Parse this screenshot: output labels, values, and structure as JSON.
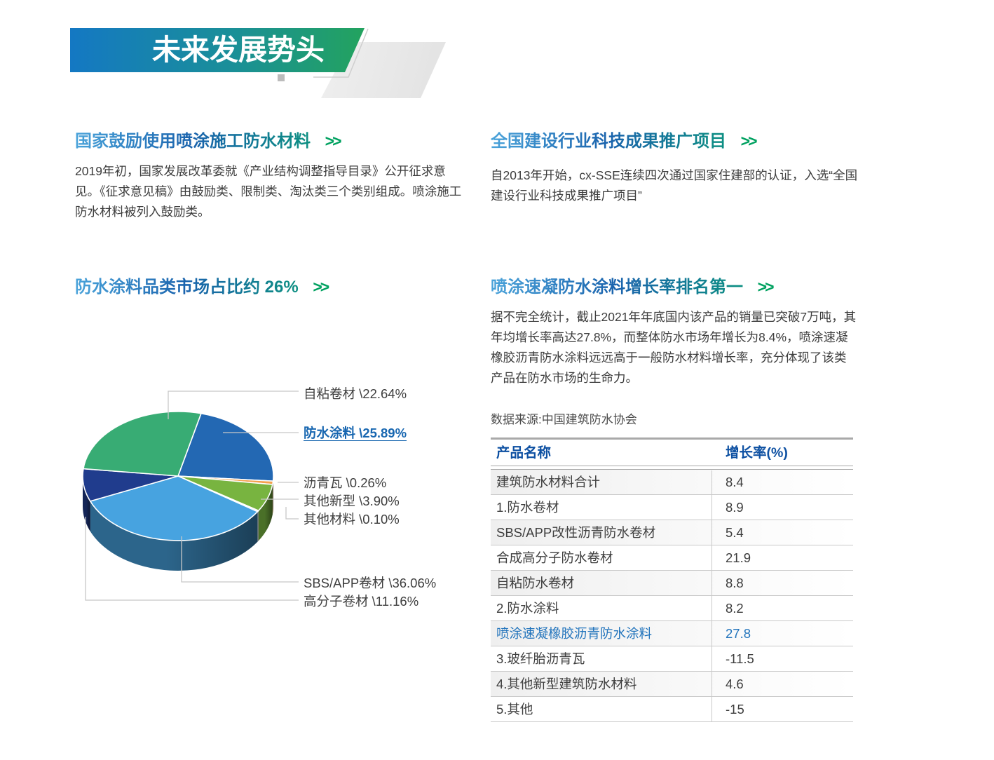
{
  "banner": {
    "title": "未来发展势头"
  },
  "sections": {
    "s1": {
      "heading": "国家鼓励使用喷涂施工防水材料",
      "arrow": ">>",
      "body": "2019年初，国家发展改革委就《产业结构调整指导目录》公开征求意\n见。《征求意见稿》由鼓励类、限制类、淘汰类三个类别组成。喷涂施工\n防水材料被列入鼓励类。"
    },
    "s2": {
      "heading": "全国建设行业科技成果推广项目",
      "arrow": ">>",
      "body": "自2013年开始，cx-SSE连续四次通过国家住建部的认证，入选“全国\n建设行业科技成果推广项目”"
    },
    "s3": {
      "heading": "防水涂料品类市场占比约 26%",
      "arrow": ">>"
    },
    "s4": {
      "heading": "喷涂速凝防水涂料增长率排名第一",
      "arrow": ">>",
      "body": "据不完全统计，截止2021年年底国内该产品的销量已突破7万吨，其\n年均增长率高达27.8%，而整体防水市场年增长为8.4%，喷涂速凝\n橡胶沥青防水涂料远远高于一般防水材料增长率，充分体现了该类\n产品在防水市场的生命力。",
      "source": "数据来源:中国建筑防水协会"
    }
  },
  "chart_data": {
    "type": "pie",
    "title": "防水涂料品类市场占比约 26%",
    "unit": "%",
    "style": "3d",
    "start_angle_deg": 76,
    "direction": "clockwise",
    "slices": [
      {
        "label": "防水涂料",
        "value": 25.89,
        "color": "#2368b3",
        "highlight": true
      },
      {
        "label": "沥青瓦",
        "value": 0.26,
        "color": "#f3a04d"
      },
      {
        "label": "其他新型",
        "value": 3.9,
        "color": "#78b440"
      },
      {
        "label": "其他材料",
        "value": 0.1,
        "color": "#d4d8dc"
      },
      {
        "label": "SBS/APP卷材",
        "value": 36.06,
        "color": "#47a3e0"
      },
      {
        "label": "高分子卷材",
        "value": 11.16,
        "color": "#203c8d"
      },
      {
        "label": "自粘卷材",
        "value": 22.64,
        "color": "#38ac74"
      }
    ]
  },
  "table": {
    "columns": [
      "产品名称",
      "增长率(%)"
    ],
    "rows": [
      {
        "name": "建筑防水材料合计",
        "value": "8.4"
      },
      {
        "name": "1.防水卷材",
        "value": "8.9"
      },
      {
        "name": "SBS/APP改性沥青防水卷材",
        "value": "5.4"
      },
      {
        "name": "合成高分子防水卷材",
        "value": "21.9"
      },
      {
        "name": "自粘防水卷材",
        "value": "8.8"
      },
      {
        "name": "2.防水涂料",
        "value": "8.2"
      },
      {
        "name": "喷涂速凝橡胶沥青防水涂料",
        "value": "27.8",
        "highlight": true
      },
      {
        "name": "3.玻纤胎沥青瓦",
        "value": "-11.5"
      },
      {
        "name": "4.其他新型建筑防水材料",
        "value": "4.6"
      },
      {
        "name": "5.其他",
        "value": "-15"
      }
    ]
  },
  "colors": {
    "banner_gradient_start": "#1478c3",
    "banner_gradient_end": "#23a35e",
    "heading_blue": "#1a63ad",
    "heading_teal": "#0d9082",
    "arrow_green": "#00a160",
    "table_header_blue": "#0d50a2",
    "highlight_blue": "#2274bc",
    "body_text": "#3d3d3d",
    "leader_line": "#c8c8c8"
  }
}
